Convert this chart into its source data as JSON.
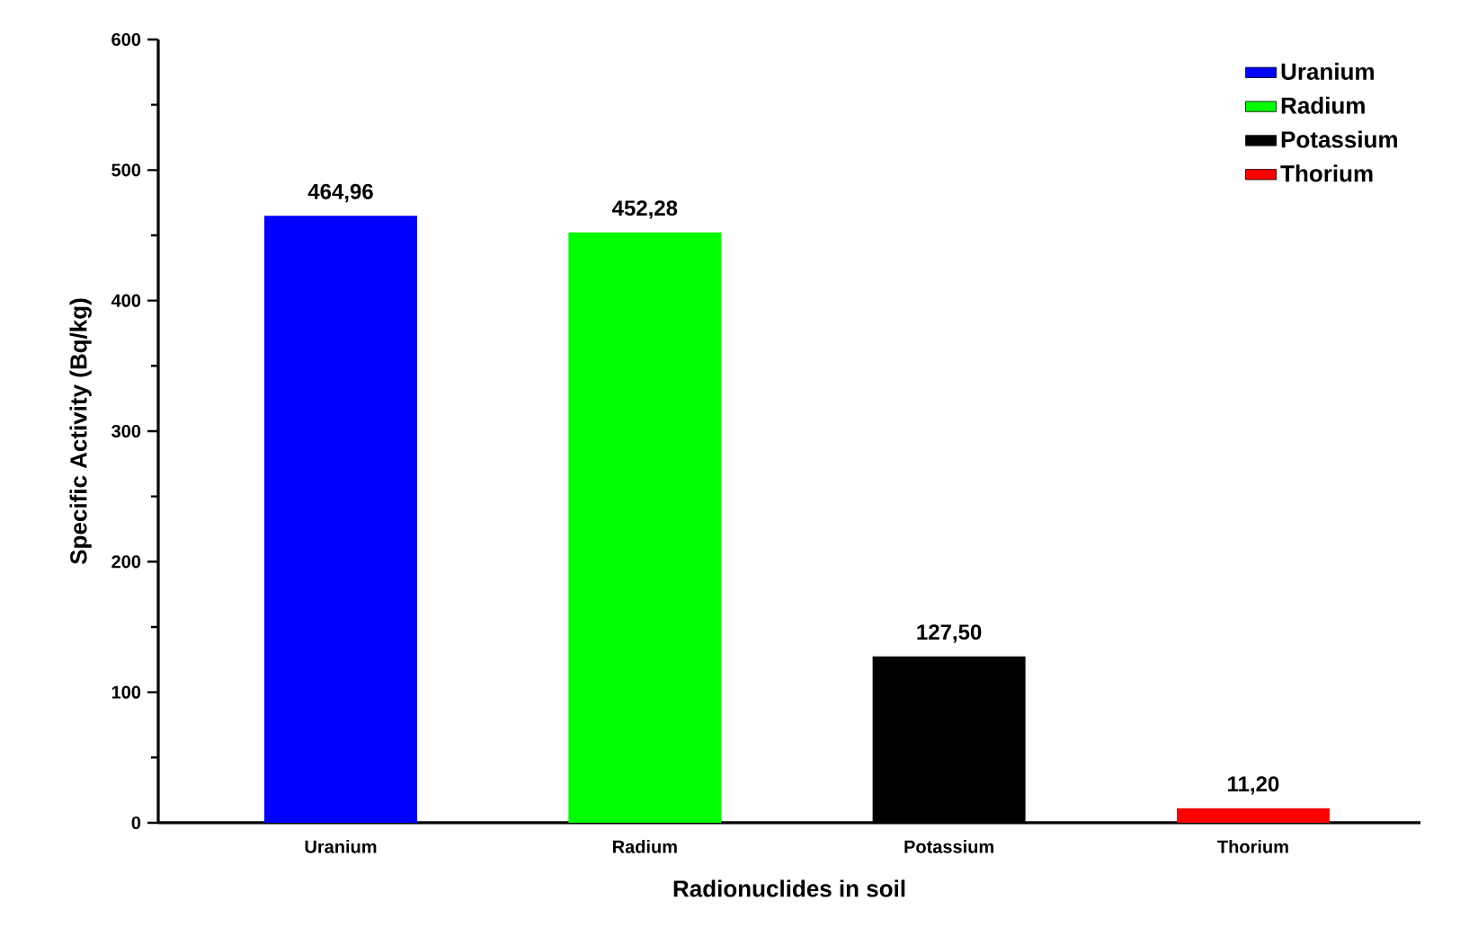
{
  "chart_data": {
    "type": "bar",
    "xlabel": "Radionuclides in soil",
    "ylabel": "Specific Activity (Bq/kg)",
    "categories": [
      "Uranium",
      "Radium",
      "Potassium",
      "Thorium"
    ],
    "series": [
      {
        "name": "Uranium",
        "color": "#0000ff",
        "values": [
          464.96,
          null,
          null,
          null
        ],
        "value_labels": [
          "464,96",
          null,
          null,
          null
        ]
      },
      {
        "name": "Radium",
        "color": "#00ff00",
        "values": [
          null,
          452.28,
          null,
          null
        ],
        "value_labels": [
          null,
          "452,28",
          null,
          null
        ]
      },
      {
        "name": "Potassium",
        "color": "#000000",
        "values": [
          null,
          null,
          127.5,
          null
        ],
        "value_labels": [
          null,
          null,
          "127,50",
          null
        ]
      },
      {
        "name": "Thorium",
        "color": "#ff0000",
        "values": [
          null,
          null,
          null,
          11.2
        ],
        "value_labels": [
          null,
          null,
          null,
          "11,20"
        ]
      }
    ],
    "ylim": [
      0,
      600
    ],
    "yticks": [
      0,
      100,
      200,
      300,
      400,
      500,
      600
    ],
    "grid": false,
    "legend": "top right"
  }
}
